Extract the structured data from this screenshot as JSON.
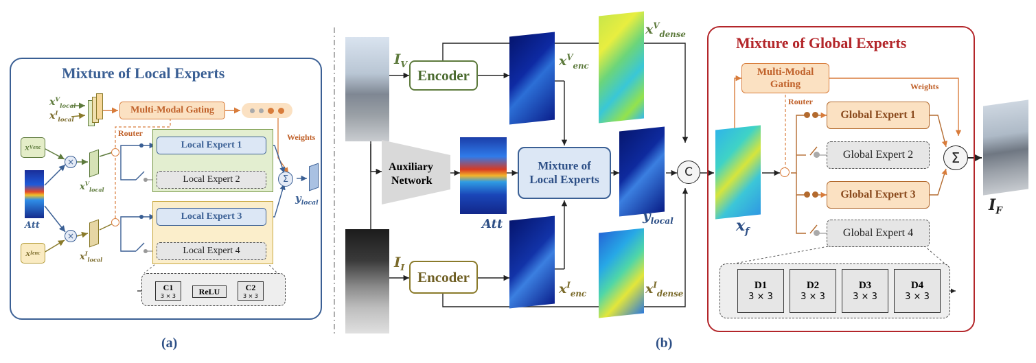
{
  "panel_a": {
    "title": "Mixture of Local Experts",
    "label": "(a)",
    "gating": "Multi-Modal Gating",
    "router": "Router",
    "weights": "Weights",
    "experts": [
      "Local Expert 1",
      "Local Expert 2",
      "Local Expert 3",
      "Local Expert 4"
    ],
    "expert_active": [
      true,
      false,
      true,
      false
    ],
    "inputs": {
      "x_local": "x",
      "x_enc": "x",
      "att": "Att",
      "y_local": "y"
    },
    "sub_local": "local",
    "sub_enc": "enc",
    "sup_v": "V",
    "sup_i": "I",
    "expert_block": [
      {
        "name": "C1",
        "kernel": "3 × 3"
      },
      {
        "name": "ReLU",
        "kernel": ""
      },
      {
        "name": "C2",
        "kernel": "3 × 3"
      }
    ]
  },
  "panel_b": {
    "label": "(b)",
    "encoder": "Encoder",
    "aux_net_1": "Auxiliary",
    "aux_net_2": "Network",
    "mole_1": "Mixture of",
    "mole_2": "Local Experts",
    "concat": "C",
    "I_V": "I",
    "I_I": "I",
    "att": "Att",
    "x_enc": "x",
    "x_dense": "x",
    "y_local": "y",
    "sub_enc": "enc",
    "sub_dense": "dense",
    "sub_local": "local",
    "sub_v": "V",
    "sub_i": "I"
  },
  "panel_c": {
    "title": "Mixture of Global Experts",
    "gating_1": "Multi-Modal",
    "gating_2": "Gating",
    "router": "Router",
    "weights": "Weights",
    "experts": [
      "Global Expert 1",
      "Global Expert 2",
      "Global Expert 3",
      "Global Expert 4"
    ],
    "expert_active": [
      true,
      false,
      true,
      false
    ],
    "x_f": "x",
    "sub_f": "f",
    "I_F": "I",
    "sub_F": "F",
    "expert_block": [
      {
        "name": "D1",
        "kernel": "3 × 3"
      },
      {
        "name": "D2",
        "kernel": "3 × 3"
      },
      {
        "name": "D3",
        "kernel": "3 × 3"
      },
      {
        "name": "D4",
        "kernel": "3 × 3"
      }
    ]
  },
  "colors": {
    "blue_frame": "#3a5f94",
    "red_frame": "#b3262a",
    "orange": "#d87c3b",
    "green": "#5d7a3c",
    "olive": "#7a6a2a",
    "expert_blue": "#dce7f5",
    "expert_orange": "#fbe1c2",
    "grey_box": "#e6e6e6"
  }
}
